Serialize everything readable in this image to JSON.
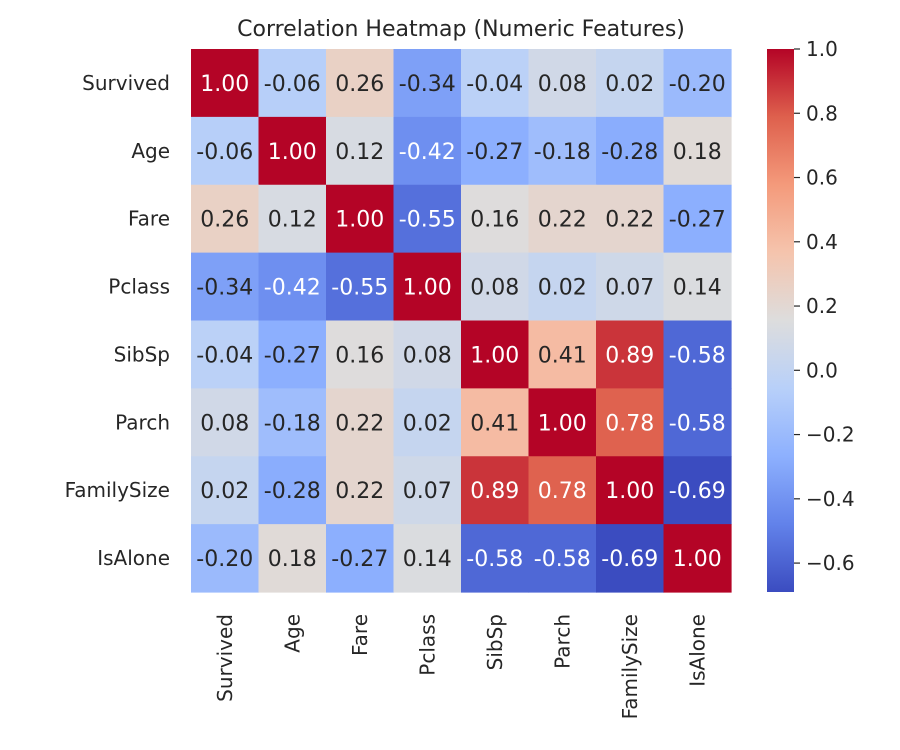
{
  "chart_data": {
    "type": "heatmap",
    "title": "Correlation Heatmap (Numeric Features)",
    "rows": [
      "Survived",
      "Age",
      "Fare",
      "Pclass",
      "SibSp",
      "Parch",
      "FamilySize",
      "IsAlone"
    ],
    "columns": [
      "Survived",
      "Age",
      "Fare",
      "Pclass",
      "SibSp",
      "Parch",
      "FamilySize",
      "IsAlone"
    ],
    "values": [
      [
        1.0,
        -0.06,
        0.26,
        -0.34,
        -0.04,
        0.08,
        0.02,
        -0.2
      ],
      [
        -0.06,
        1.0,
        0.12,
        -0.42,
        -0.27,
        -0.18,
        -0.28,
        0.18
      ],
      [
        0.26,
        0.12,
        1.0,
        -0.55,
        0.16,
        0.22,
        0.22,
        -0.27
      ],
      [
        -0.34,
        -0.42,
        -0.55,
        1.0,
        0.08,
        0.02,
        0.07,
        0.14
      ],
      [
        -0.04,
        -0.27,
        0.16,
        0.08,
        1.0,
        0.41,
        0.89,
        -0.58
      ],
      [
        0.08,
        -0.18,
        0.22,
        0.02,
        0.41,
        1.0,
        0.78,
        -0.58
      ],
      [
        0.02,
        -0.28,
        0.22,
        0.07,
        0.89,
        0.78,
        1.0,
        -0.69
      ],
      [
        -0.2,
        0.18,
        -0.27,
        0.14,
        -0.58,
        -0.58,
        -0.69,
        1.0
      ]
    ],
    "colormap": "coolwarm",
    "vmin": -0.69,
    "vmax": 1.0,
    "colorbar": {
      "ticks": [
        1.0,
        0.8,
        0.6,
        0.4,
        0.2,
        0.0,
        -0.2,
        -0.4,
        -0.6
      ],
      "tick_labels": [
        "1.0",
        "0.8",
        "0.6",
        "0.4",
        "0.2",
        "0.0",
        "−0.2",
        "−0.4",
        "−0.6"
      ],
      "position": "right"
    },
    "colors": {
      "low": "#3b4cc0",
      "mid": "#dddcdc",
      "high": "#b40426"
    }
  }
}
